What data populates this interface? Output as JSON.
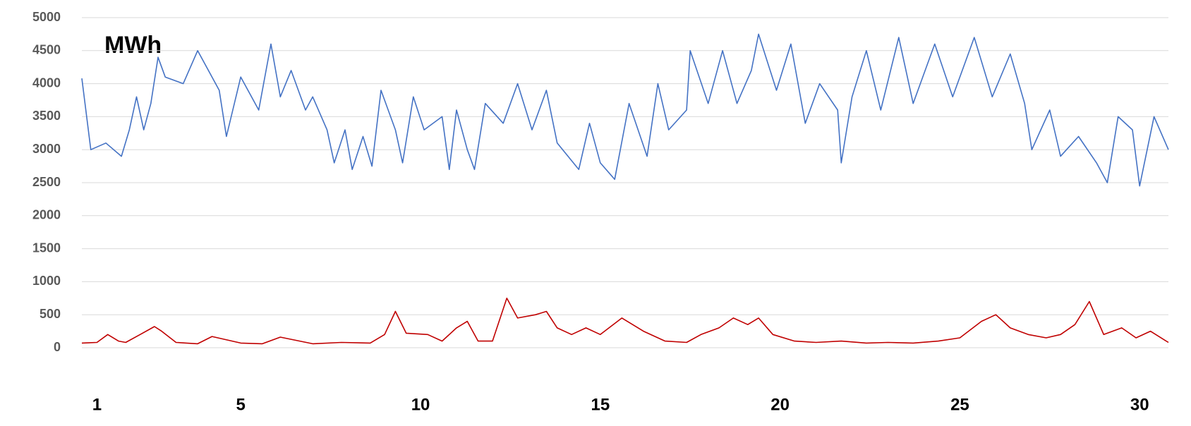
{
  "chart_data": {
    "type": "line",
    "annotation": "MWh",
    "xlim": [
      0.58,
      30.8
    ],
    "xticks": [
      1,
      5,
      10,
      15,
      20,
      25,
      30
    ],
    "ylim": [
      0,
      5000
    ],
    "yticks": [
      0,
      500,
      1000,
      1500,
      2000,
      2500,
      3000,
      3500,
      4000,
      4500,
      5000
    ],
    "grid": true,
    "series": [
      {
        "color": "#4472c4",
        "x": [
          0.58,
          0.83,
          1.25,
          1.68,
          1.9,
          2.1,
          2.3,
          2.5,
          2.7,
          2.9,
          3.4,
          3.8,
          4.0,
          4.4,
          4.6,
          5.0,
          5.5,
          5.84,
          6.1,
          6.4,
          6.8,
          7.0,
          7.4,
          7.6,
          7.9,
          8.1,
          8.4,
          8.65,
          8.9,
          9.3,
          9.5,
          9.8,
          10.1,
          10.6,
          10.8,
          11.0,
          11.3,
          11.5,
          11.8,
          12.3,
          12.7,
          13.1,
          13.5,
          13.8,
          14.4,
          14.7,
          15.0,
          15.4,
          15.8,
          16.3,
          16.6,
          16.9,
          17.4,
          17.5,
          18.0,
          18.4,
          18.8,
          19.2,
          19.4,
          19.9,
          20.3,
          20.7,
          21.1,
          21.6,
          21.7,
          22.0,
          22.4,
          22.8,
          23.3,
          23.7,
          24.3,
          24.8,
          25.4,
          25.9,
          26.4,
          26.8,
          27.0,
          27.5,
          27.8,
          28.3,
          28.8,
          29.1,
          29.4,
          29.8,
          30.0,
          30.4,
          30.8
        ],
        "values": [
          4080,
          3000,
          3100,
          2900,
          3300,
          3800,
          3300,
          3700,
          4400,
          4100,
          4000,
          4500,
          4300,
          3900,
          3200,
          4100,
          3600,
          4600,
          3800,
          4200,
          3600,
          3800,
          3300,
          2800,
          3300,
          2700,
          3200,
          2750,
          3900,
          3300,
          2800,
          3800,
          3300,
          3500,
          2700,
          3600,
          3000,
          2700,
          3700,
          3400,
          4000,
          3300,
          3900,
          3100,
          2700,
          3400,
          2800,
          2550,
          3700,
          2900,
          4000,
          3300,
          3600,
          4500,
          3700,
          4500,
          3700,
          4200,
          4750,
          3900,
          4600,
          3400,
          4000,
          3600,
          2800,
          3800,
          4500,
          3600,
          4700,
          3700,
          4600,
          3800,
          4700,
          3800,
          4450,
          3700,
          3000,
          3600,
          2900,
          3200,
          2800,
          2500,
          3500,
          3300,
          2450,
          3500,
          3000
        ]
      },
      {
        "color": "#c00000",
        "x": [
          0.58,
          1.0,
          1.3,
          1.6,
          1.8,
          2.2,
          2.6,
          2.8,
          3.2,
          3.8,
          4.2,
          5.0,
          5.6,
          6.1,
          7.0,
          7.8,
          8.6,
          9.0,
          9.3,
          9.6,
          10.2,
          10.6,
          11.0,
          11.3,
          11.6,
          12.0,
          12.4,
          12.7,
          13.2,
          13.5,
          13.8,
          14.2,
          14.6,
          15.0,
          15.6,
          16.2,
          16.8,
          17.4,
          17.8,
          18.3,
          18.7,
          19.1,
          19.4,
          19.8,
          20.4,
          21.0,
          21.7,
          22.4,
          23.0,
          23.7,
          24.4,
          25.0,
          25.6,
          26.0,
          26.4,
          26.9,
          27.4,
          27.8,
          28.2,
          28.6,
          29.0,
          29.5,
          29.9,
          30.3,
          30.8
        ],
        "values": [
          70,
          80,
          200,
          100,
          80,
          200,
          320,
          250,
          80,
          60,
          170,
          70,
          60,
          160,
          60,
          80,
          70,
          200,
          550,
          220,
          200,
          100,
          300,
          400,
          100,
          100,
          750,
          450,
          500,
          550,
          300,
          200,
          300,
          200,
          450,
          250,
          100,
          80,
          200,
          300,
          450,
          350,
          450,
          200,
          100,
          80,
          100,
          70,
          80,
          70,
          100,
          150,
          400,
          500,
          300,
          200,
          150,
          200,
          350,
          700,
          200,
          300,
          150,
          250,
          80
        ]
      }
    ]
  }
}
